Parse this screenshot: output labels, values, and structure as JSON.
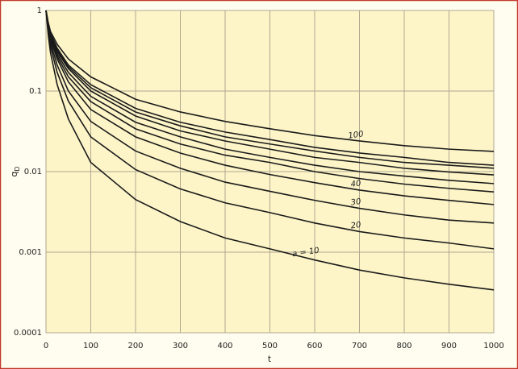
{
  "chart_data": {
    "type": "line",
    "x_label": "t",
    "y_label": "q",
    "y_label_subscript": "D",
    "x": [
      0,
      5,
      10,
      25,
      50,
      100,
      200,
      300,
      400,
      500,
      600,
      700,
      800,
      900,
      1000
    ],
    "series": [
      {
        "name": "a = 10",
        "color": "#1a1a1a",
        "values": [
          1,
          0.5,
          0.3,
          0.12,
          0.045,
          0.013,
          0.0045,
          0.0024,
          0.0015,
          0.0011,
          0.0008,
          0.0006,
          0.00048,
          0.0004,
          0.00034
        ]
      },
      {
        "name": "20",
        "color": "#1a1a1a",
        "values": [
          1,
          0.56,
          0.36,
          0.17,
          0.075,
          0.027,
          0.0106,
          0.0061,
          0.0041,
          0.0031,
          0.0023,
          0.0018,
          0.0015,
          0.0013,
          0.0011
        ]
      },
      {
        "name": "30",
        "color": "#1a1a1a",
        "values": [
          1,
          0.59,
          0.4,
          0.21,
          0.1,
          0.042,
          0.018,
          0.011,
          0.0074,
          0.0057,
          0.0044,
          0.0035,
          0.0029,
          0.0025,
          0.0023
        ]
      },
      {
        "name": "40",
        "color": "#1a1a1a",
        "values": [
          1,
          0.62,
          0.44,
          0.25,
          0.13,
          0.059,
          0.027,
          0.017,
          0.012,
          0.0092,
          0.0073,
          0.0059,
          0.005,
          0.0044,
          0.0039
        ]
      },
      {
        "color": "#1a1a1a",
        "values": [
          1,
          0.64,
          0.46,
          0.27,
          0.15,
          0.074,
          0.034,
          0.022,
          0.016,
          0.013,
          0.01,
          0.0082,
          0.007,
          0.0062,
          0.0056
        ]
      },
      {
        "color": "#1a1a1a",
        "values": [
          1,
          0.65,
          0.48,
          0.29,
          0.17,
          0.086,
          0.041,
          0.027,
          0.019,
          0.015,
          0.012,
          0.01,
          0.0088,
          0.0078,
          0.0071
        ]
      },
      {
        "color": "#1a1a1a",
        "values": [
          1,
          0.67,
          0.5,
          0.31,
          0.19,
          0.1,
          0.049,
          0.032,
          0.024,
          0.019,
          0.015,
          0.013,
          0.011,
          0.0099,
          0.0091
        ]
      },
      {
        "color": "#1a1a1a",
        "values": [
          1,
          0.68,
          0.51,
          0.33,
          0.2,
          0.11,
          0.055,
          0.037,
          0.027,
          0.022,
          0.018,
          0.015,
          0.013,
          0.012,
          0.011
        ]
      },
      {
        "color": "#1a1a1a",
        "values": [
          1,
          0.69,
          0.52,
          0.34,
          0.21,
          0.12,
          0.061,
          0.041,
          0.031,
          0.025,
          0.02,
          0.017,
          0.015,
          0.013,
          0.012
        ]
      },
      {
        "name": "100",
        "color": "#1a1a1a",
        "values": [
          1,
          0.71,
          0.55,
          0.38,
          0.25,
          0.15,
          0.079,
          0.055,
          0.042,
          0.034,
          0.028,
          0.024,
          0.021,
          0.019,
          0.0178
        ]
      }
    ],
    "xlim": [
      0,
      1000
    ],
    "xticks": [
      0,
      100,
      200,
      300,
      400,
      500,
      600,
      700,
      800,
      900,
      1000
    ],
    "ylim": [
      0.0001,
      1
    ],
    "yticks": [
      0.0001,
      0.001,
      0.01,
      0.1,
      1
    ],
    "log_y": true,
    "grid": true,
    "plot_background": "#fdf5c8"
  }
}
